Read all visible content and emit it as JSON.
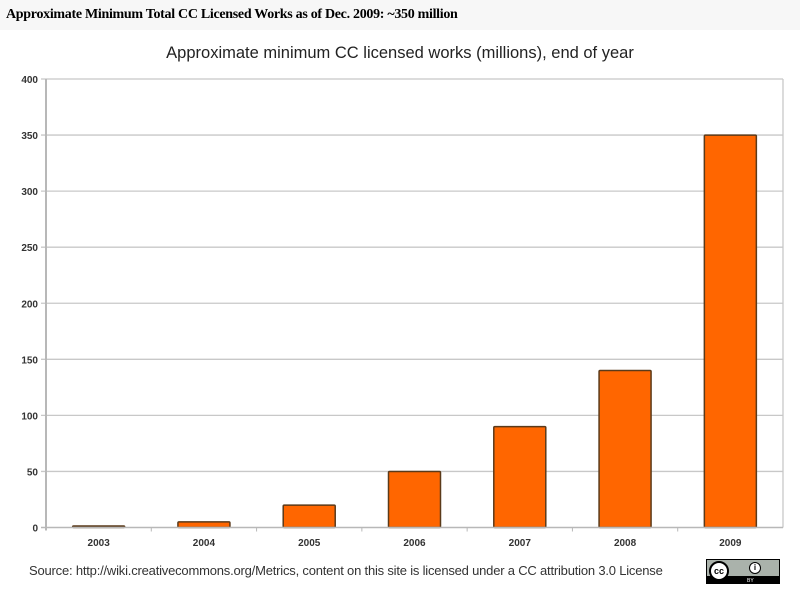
{
  "page": {
    "title": "Approximate Minimum Total CC Licensed Works as of Dec. 2009: ~350 million",
    "footer": "Source: http://wiki.creativecommons.org/Metrics,  content on this site is licensed under a CC attribution 3.0 License",
    "badge": {
      "cc": "cc",
      "by_symbol": "i",
      "by_text": "BY"
    }
  },
  "colors": {
    "bar_fill": "#ff6600",
    "bar_stroke": "#5a3a1a",
    "grid": "#c8c8c8",
    "axis": "#b8b8b8"
  },
  "chart_data": {
    "type": "bar",
    "title": "Approximate minimum CC licensed works (millions), end of year",
    "xlabel": "",
    "ylabel": "",
    "categories": [
      "2003",
      "2004",
      "2005",
      "2006",
      "2007",
      "2008",
      "2009"
    ],
    "values": [
      1,
      5,
      20,
      50,
      90,
      140,
      350
    ],
    "ylim": [
      0,
      400
    ],
    "yticks": [
      "0",
      "50",
      "100",
      "150",
      "200",
      "250",
      "300",
      "350",
      "400"
    ],
    "grid": true,
    "legend": "none"
  }
}
